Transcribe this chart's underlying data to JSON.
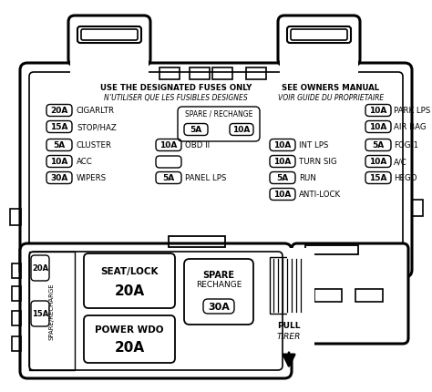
{
  "bg_color": "#ffffff",
  "header_line1": "USE THE DESIGNATED FUSES ONLY",
  "header_line2": "N’UTILISER QUE LES FUSIBLES DESIGNES",
  "header_line3": "SEE OWNERS MANUAL",
  "header_line4": "VOIR GUIDE DU PROPRIETAIRE",
  "fuses_left": [
    {
      "amp": "20A",
      "label": "CIGARLTR"
    },
    {
      "amp": "15A",
      "label": "STOP/HAZ"
    },
    {
      "amp": "5A",
      "label": "CLUSTER"
    },
    {
      "amp": "10A",
      "label": "ACC"
    },
    {
      "amp": "30A",
      "label": "WIPERS"
    }
  ],
  "fuses_center_col": [
    {
      "amp": "10A",
      "label": "OBD II",
      "row": 2
    },
    {
      "amp": "",
      "label": "",
      "row": 3
    },
    {
      "amp": "5A",
      "label": "PANEL LPS",
      "row": 4
    }
  ],
  "fuses_cr_col": [
    {
      "amp": "10A",
      "label": "INT LPS"
    },
    {
      "amp": "10A",
      "label": "TURN SIG"
    },
    {
      "amp": "5A",
      "label": "RUN"
    },
    {
      "amp": "10A",
      "label": "ANTI-LOCK"
    }
  ],
  "fuses_right": [
    {
      "amp": "10A",
      "label": "PARK LPS"
    },
    {
      "amp": "10A",
      "label": "AIR BAG"
    },
    {
      "amp": "5A",
      "label": "FOG-1"
    },
    {
      "amp": "10A",
      "label": "A/C"
    },
    {
      "amp": "15A",
      "label": "HEGO"
    }
  ],
  "spare_top_fuses": [
    "5A",
    "10A"
  ],
  "lower_spare_fuses": [
    "20A",
    "15A"
  ],
  "seat_lock_label": "SEAT/LOCK",
  "seat_lock_amp": "20A",
  "power_wdo_label": "POWER WDO",
  "power_wdo_amp": "20A",
  "spare_recharge_amp": "30A",
  "pull_text": "PULL",
  "tirer_text": "TIRER",
  "spare_recharge_label": "SPARE\nRECHANGE",
  "spare_recharge_lower": "SPARE/RECHARGE"
}
